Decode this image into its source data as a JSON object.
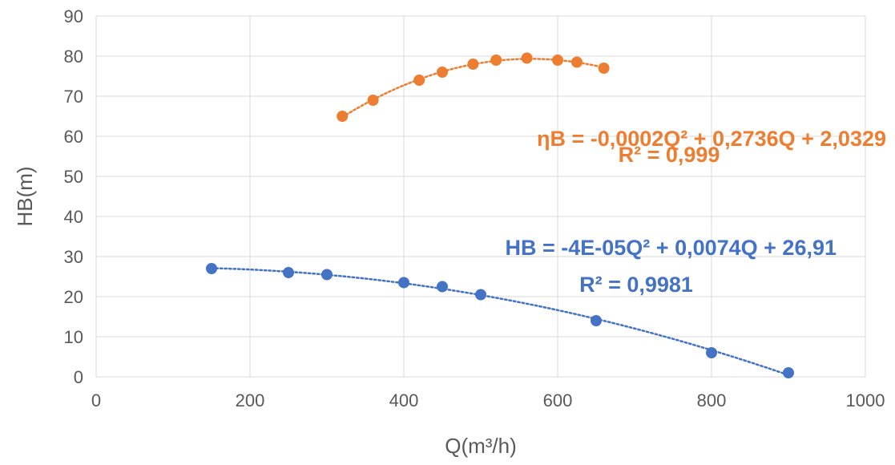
{
  "chart_data": {
    "type": "scatter",
    "xlabel": "Q(m³/h)",
    "ylabel": "HB(m)",
    "xlim": [
      0,
      1000
    ],
    "ylim": [
      0,
      90
    ],
    "x_ticks": [
      "0",
      "200",
      "400",
      "600",
      "800",
      "1000"
    ],
    "y_ticks": [
      "0",
      "10",
      "20",
      "30",
      "40",
      "50",
      "60",
      "70",
      "80",
      "90"
    ],
    "grid": true,
    "series": [
      {
        "color": "#ED7D31",
        "marker": "circle",
        "trendline": "polynomial-2",
        "equation": "ηB = -0,0002Q² + 0,2736Q + 2,0329",
        "r2": "R² = 0,999",
        "points": [
          {
            "x": 320,
            "y": 65
          },
          {
            "x": 360,
            "y": 69
          },
          {
            "x": 420,
            "y": 74
          },
          {
            "x": 450,
            "y": 76
          },
          {
            "x": 490,
            "y": 78
          },
          {
            "x": 520,
            "y": 79
          },
          {
            "x": 560,
            "y": 79.5
          },
          {
            "x": 600,
            "y": 79
          },
          {
            "x": 625,
            "y": 78.5
          },
          {
            "x": 660,
            "y": 77
          }
        ]
      },
      {
        "color": "#4472C4",
        "marker": "circle",
        "trendline": "polynomial-2",
        "equation": "HB = -4E-05Q² + 0,0074Q + 26,91",
        "r2": "R² = 0,9981",
        "points": [
          {
            "x": 150,
            "y": 27
          },
          {
            "x": 250,
            "y": 26
          },
          {
            "x": 300,
            "y": 25.5
          },
          {
            "x": 400,
            "y": 23.5
          },
          {
            "x": 450,
            "y": 22.5
          },
          {
            "x": 500,
            "y": 20.5
          },
          {
            "x": 650,
            "y": 14
          },
          {
            "x": 800,
            "y": 6
          },
          {
            "x": 900,
            "y": 1
          }
        ]
      }
    ]
  }
}
